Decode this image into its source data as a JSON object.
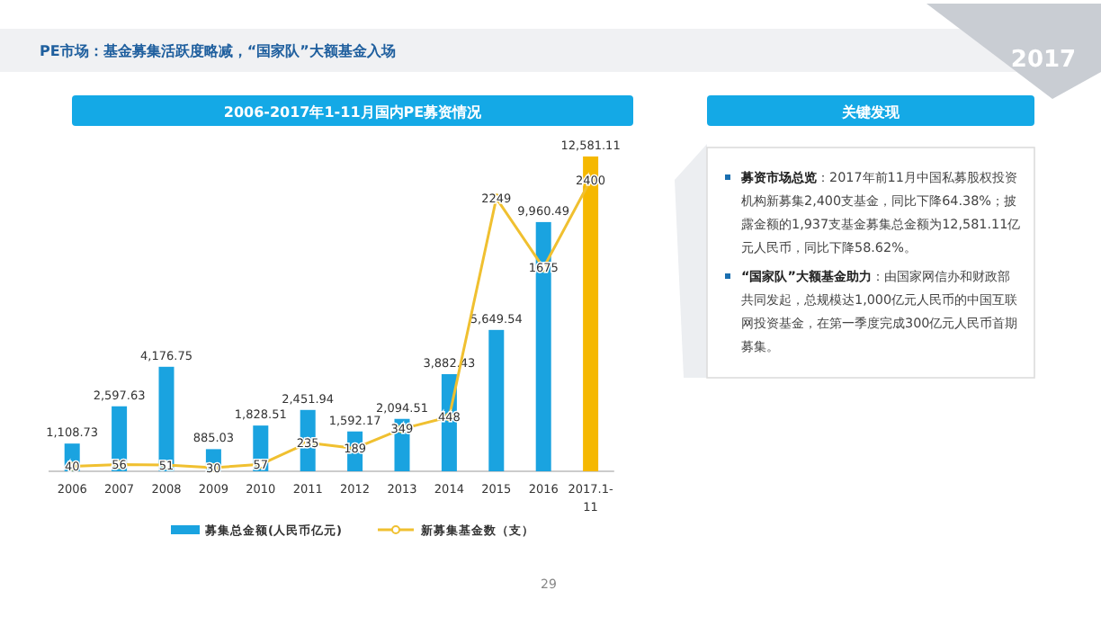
{
  "chart_data": [
    {
      "type": "bar",
      "title": "PE市场：基金募集活跃度略减，“国家队”大额基金入场",
      "subtitle": "2006-2017年1-11月国内PE募资情况",
      "categories": [
        "2006",
        "2007",
        "2008",
        "2009",
        "2010",
        "2011",
        "2012",
        "2013",
        "2014",
        "2015",
        "2016",
        "2017.1-11"
      ],
      "series": [
        {
          "type": "bar",
          "name": "募集总金额(人民币亿元)",
          "color": "#1aa3e0",
          "colors": [
            "#1aa3e0",
            "#1aa3e0",
            "#1aa3e0",
            "#1aa3e0",
            "#1aa3e0",
            "#1aa3e0",
            "#1aa3e0",
            "#1aa3e0",
            "#1aa3e0",
            "#1aa3e0",
            "#1aa3e0",
            "#f5b800"
          ],
          "values": [
            1108.73,
            2597.63,
            4176.75,
            885.03,
            1828.51,
            2451.94,
            1592.17,
            2094.51,
            3882.43,
            5649.54,
            9960.49,
            12581.11
          ],
          "value_labels": [
            "1,108.73",
            "2,597.63",
            "4,176.75",
            "885.03",
            "1,828.51",
            "2,451.94",
            "1,592.17",
            "2,094.51",
            "3,882.43",
            "5,649.54",
            "9,960.49",
            "12,581.11"
          ]
        },
        {
          "type": "line",
          "axis": "y2",
          "name": "新募集基金数（支）",
          "color": "#f0c030",
          "values": [
            40,
            56,
            51,
            30,
            57,
            235,
            189,
            349,
            448,
            2249,
            1675,
            2400
          ]
        }
      ],
      "data_labels": true,
      "legend": "bottom",
      "marker": "circle",
      "annotations": [
        "29",
        "2017"
      ]
    },
    {
      "type": "other",
      "title": "关键发现",
      "annotations": [
        "**募资市场总览**：2017年前11月中国私募股权投资机构新募集2,400支基金，同比下降64.38%；披露金额的1,937支基金募集总金额为12,581.11亿元人民币，同比下降58.62%。",
        "**“国家队”大额基金助力**：由国家网信办和财政部共同发起，总规模达1,000亿元人民币的中国互联网投资基金，在第一季度完成300亿元人民币首期募集。"
      ]
    }
  ]
}
